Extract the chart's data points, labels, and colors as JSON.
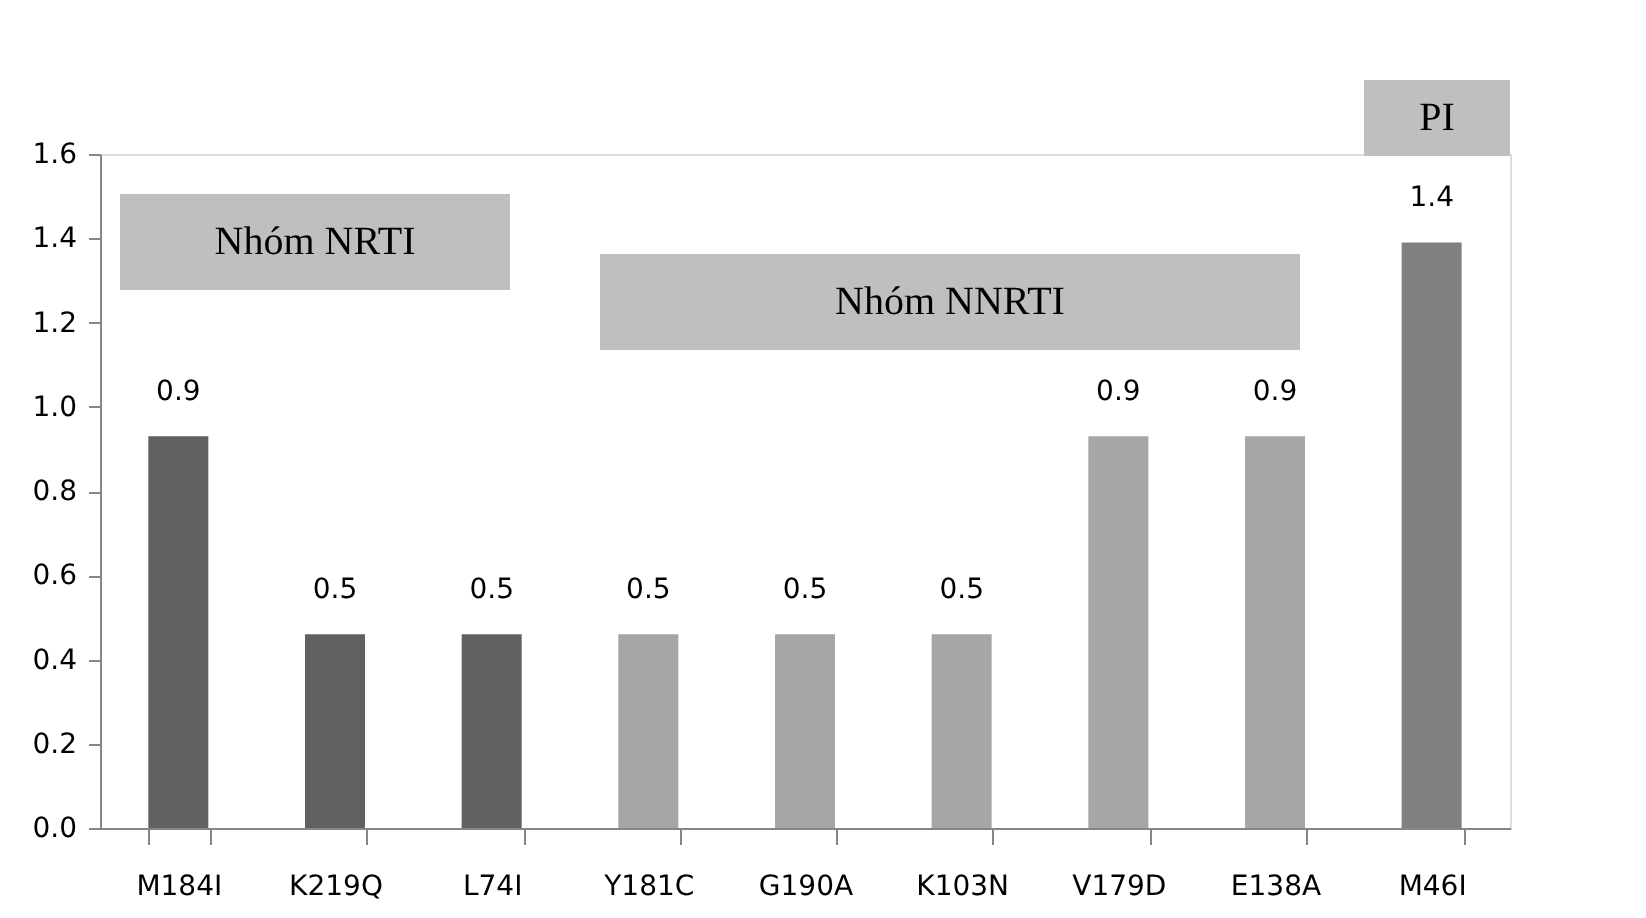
{
  "chart_data": {
    "type": "bar",
    "categories": [
      "M184I",
      "K219Q",
      "L74I",
      "Y181C",
      "G190A",
      "K103N",
      "V179D",
      "E138A",
      "M46I"
    ],
    "values": [
      0.93,
      0.46,
      0.46,
      0.46,
      0.46,
      0.46,
      0.93,
      0.93,
      1.39
    ],
    "value_labels": [
      "0.9",
      "0.5",
      "0.5",
      "0.5",
      "0.5",
      "0.5",
      "0.9",
      "0.9",
      "1.4"
    ],
    "colors": [
      "#606060",
      "#606060",
      "#606060",
      "#a6a6a6",
      "#a6a6a6",
      "#a6a6a6",
      "#a6a6a6",
      "#a6a6a6",
      "#808080"
    ],
    "ylim": [
      0,
      1.6
    ],
    "yticks": [
      {
        "value": 0,
        "label": "0.0"
      },
      0.2,
      0.4,
      0.6,
      0.8,
      {
        "value": 1,
        "label": "1.0"
      },
      1.2,
      1.4,
      1.6
    ],
    "annotations": [
      "Nhóm NRTI",
      "Nhóm NNRTI",
      "PI"
    ],
    "grid": false
  }
}
